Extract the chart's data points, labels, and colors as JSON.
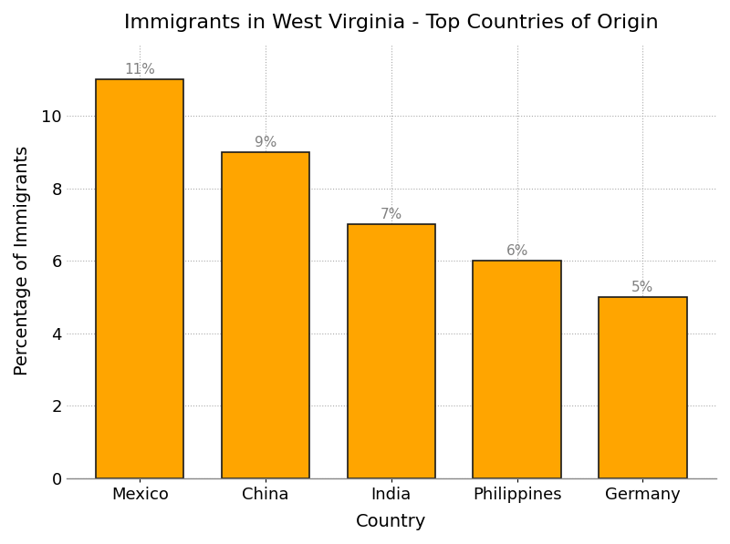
{
  "title": "Immigrants in West Virginia - Top Countries of Origin",
  "xlabel": "Country",
  "ylabel": "Percentage of Immigrants",
  "categories": [
    "Mexico",
    "China",
    "India",
    "Philippines",
    "Germany"
  ],
  "values": [
    11,
    9,
    7,
    6,
    5
  ],
  "labels": [
    "11%",
    "9%",
    "7%",
    "6%",
    "5%"
  ],
  "bar_color": "#FFA500",
  "bar_edgecolor": "#1a1a1a",
  "background_color": "#FFFFFF",
  "ylim": [
    0,
    12
  ],
  "yticks": [
    0,
    2,
    4,
    6,
    8,
    10
  ],
  "grid_color": "#AAAAAA",
  "grid_linestyle": ":",
  "title_fontsize": 16,
  "axis_label_fontsize": 14,
  "tick_fontsize": 13,
  "bar_label_fontsize": 11,
  "bar_width": 0.7
}
